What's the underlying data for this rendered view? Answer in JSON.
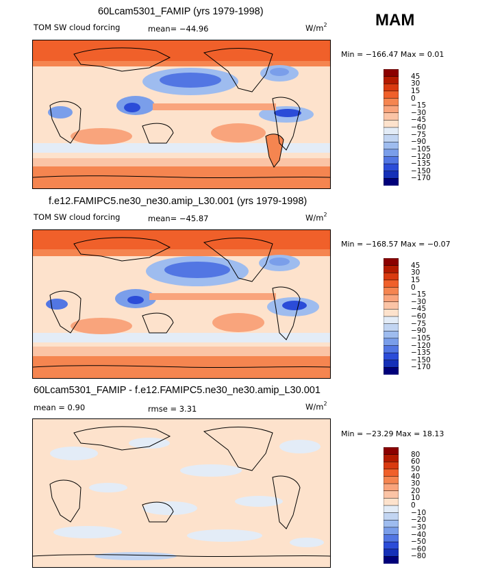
{
  "season": "MAM",
  "units_base": "W/m",
  "units_exp": "2",
  "panels": [
    {
      "title": "60Lcam5301_FAMIP (yrs 1979-1998)",
      "field": "TOM SW cloud forcing",
      "stat1": "mean=  −44.96",
      "stat2": "",
      "minmax": "Min = −166.47 Max =    0.01",
      "levels": [
        "45",
        "30",
        "15",
        "0",
        "−15",
        "−30",
        "−45",
        "−60",
        "−75",
        "−90",
        "−105",
        "−120",
        "−135",
        "−150",
        "−170"
      ],
      "colors": [
        "#8b0000",
        "#b31a00",
        "#d93a10",
        "#f0602a",
        "#f58550",
        "#f9a47c",
        "#fbc4a6",
        "#fde2cc",
        "#e3ecf7",
        "#c2d5f2",
        "#9ebcef",
        "#7a9eea",
        "#5276e3",
        "#2b4cd8",
        "#1530b8",
        "#00007a"
      ]
    },
    {
      "title": "f.e12.FAMIPC5.ne30_ne30.amip_L30.001 (yrs 1979-1998)",
      "field": "TOM SW cloud forcing",
      "stat1": "mean=  −45.87",
      "stat2": "",
      "minmax": "Min = −168.57 Max =   −0.07",
      "levels": [
        "45",
        "30",
        "15",
        "0",
        "−15",
        "−30",
        "−45",
        "−60",
        "−75",
        "−90",
        "−105",
        "−120",
        "−135",
        "−150",
        "−170"
      ],
      "colors": [
        "#8b0000",
        "#b31a00",
        "#d93a10",
        "#f0602a",
        "#f58550",
        "#f9a47c",
        "#fbc4a6",
        "#fde2cc",
        "#e3ecf7",
        "#c2d5f2",
        "#9ebcef",
        "#7a9eea",
        "#5276e3",
        "#2b4cd8",
        "#1530b8",
        "#00007a"
      ]
    },
    {
      "title": "60Lcam5301_FAMIP - f.e12.FAMIPC5.ne30_ne30.amip_L30.001",
      "field": "mean =    0.90",
      "stat1": "rmse =    3.31",
      "stat2": "",
      "minmax": "Min = −23.29 Max =  18.13",
      "levels": [
        "80",
        "60",
        "50",
        "40",
        "30",
        "20",
        "10",
        "0",
        "−10",
        "−20",
        "−30",
        "−40",
        "−50",
        "−60",
        "−80"
      ],
      "colors": [
        "#8b0000",
        "#b31a00",
        "#d93a10",
        "#f0602a",
        "#f58550",
        "#f9a47c",
        "#fbc4a6",
        "#fde2cc",
        "#e3ecf7",
        "#c2d5f2",
        "#9ebcef",
        "#7a9eea",
        "#5276e3",
        "#2b4cd8",
        "#1530b8",
        "#00007a"
      ]
    }
  ]
}
